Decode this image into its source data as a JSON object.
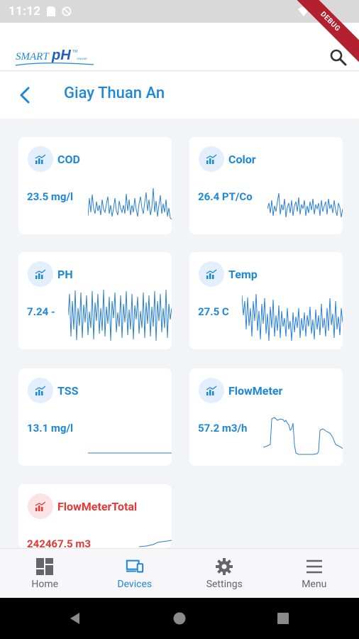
{
  "status_bar": {
    "time": "11:12",
    "debug": "DEBUG"
  },
  "app": {
    "logo_text": "SmartpH"
  },
  "header": {
    "title": "Giay Thuan An"
  },
  "cards": [
    {
      "name": "COD",
      "value": "23.5 mg/l",
      "alert": false
    },
    {
      "name": "Color",
      "value": "26.4 PT/Co",
      "alert": false
    },
    {
      "name": "PH",
      "value": "7.24 -",
      "alert": false
    },
    {
      "name": "Temp",
      "value": "27.5 C",
      "alert": false
    },
    {
      "name": "TSS",
      "value": "13.1 mg/l",
      "alert": false
    },
    {
      "name": "FlowMeter",
      "value": "57.2 m3/h",
      "alert": false
    },
    {
      "name": "FlowMeterTotal",
      "value": "242467.5 m3",
      "alert": true
    }
  ],
  "nav": {
    "home": "Home",
    "devices": "Devices",
    "settings": "Settings",
    "menu": "Menu"
  },
  "colors": {
    "accent": "#1e88d6",
    "alert": "#e53935"
  }
}
